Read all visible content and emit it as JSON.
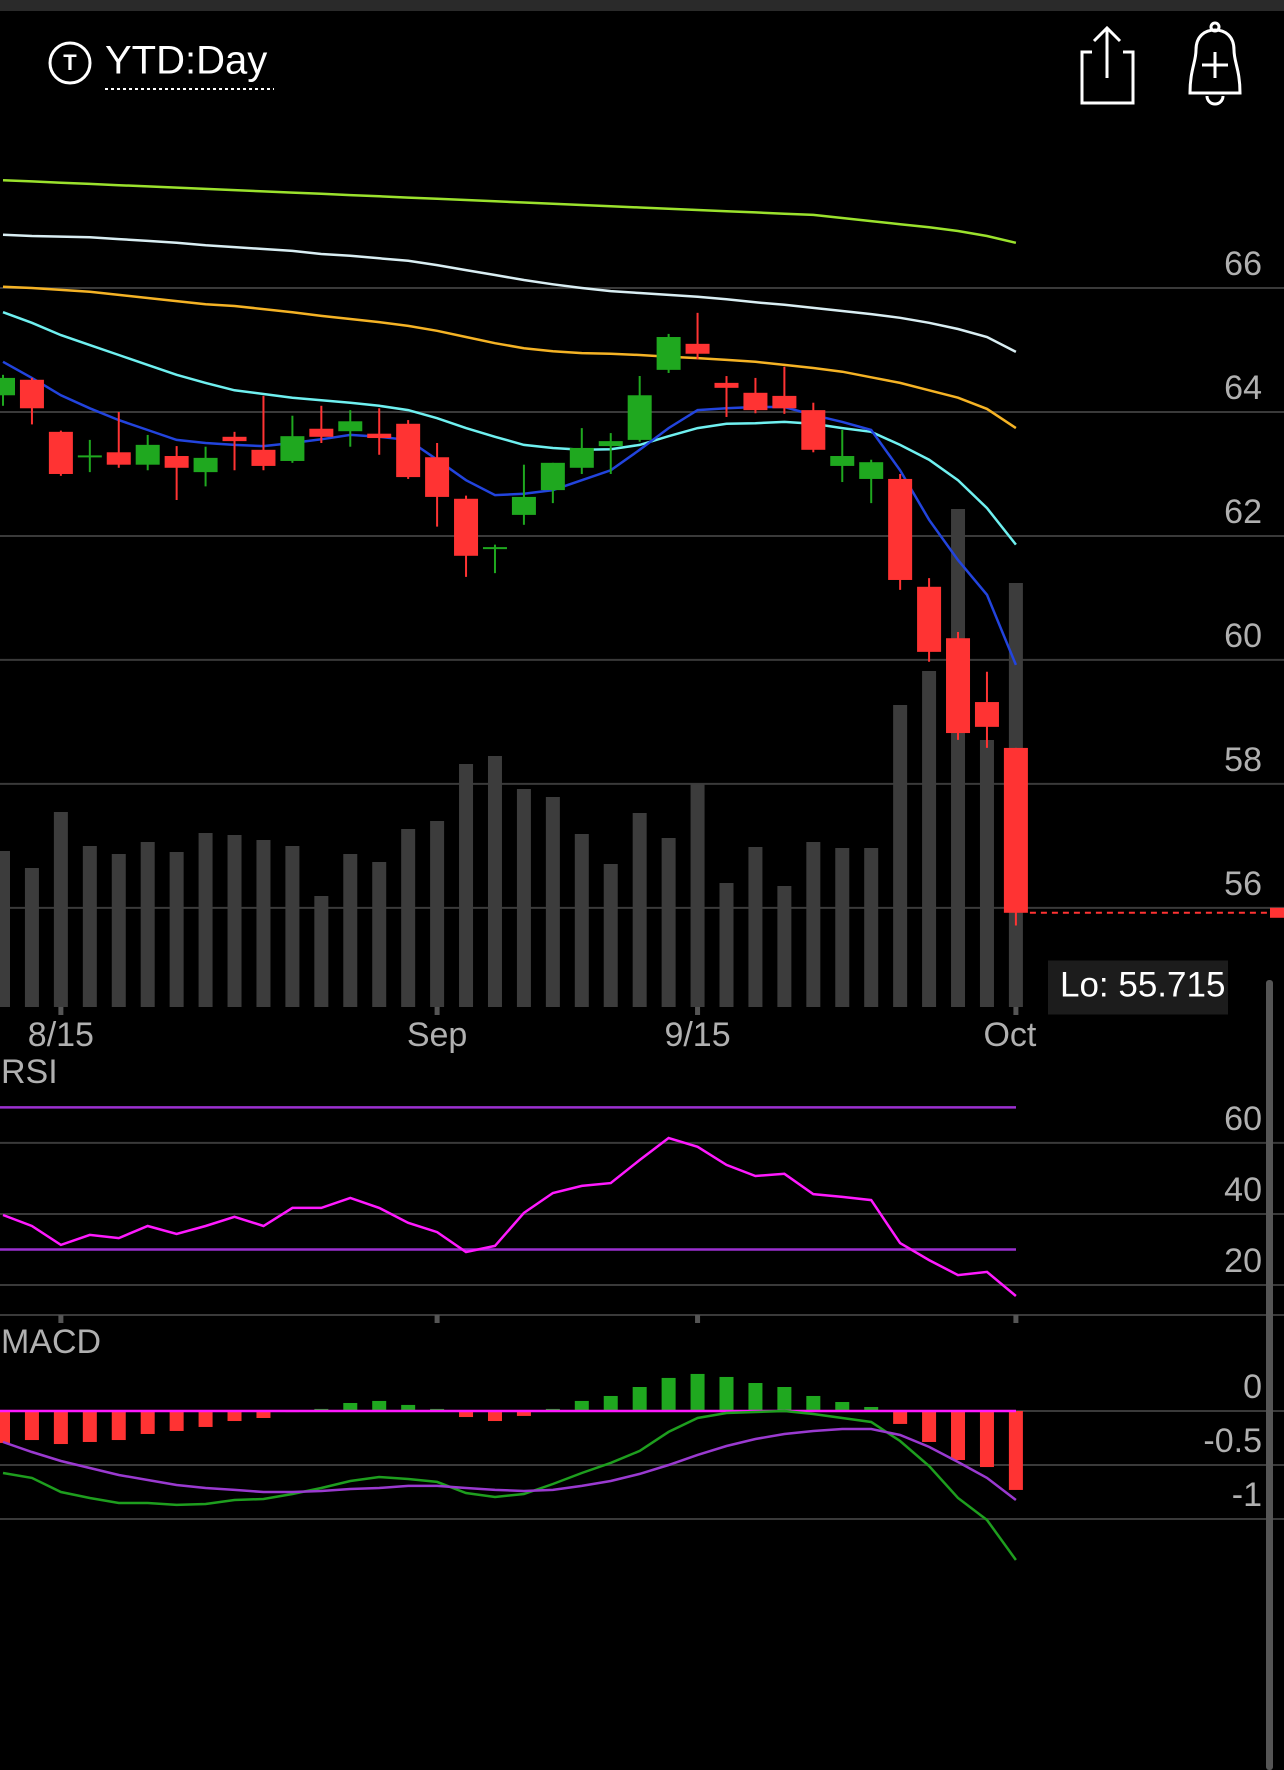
{
  "header": {
    "title": "YTD:Day"
  },
  "chart_data": [
    {
      "type": "candlestick",
      "categories": [
        null,
        null,
        "8/15",
        null,
        null,
        null,
        null,
        null,
        null,
        null,
        null,
        null,
        null,
        null,
        null,
        "Sep",
        null,
        null,
        null,
        null,
        null,
        null,
        null,
        null,
        "9/15",
        null,
        null,
        null,
        null,
        null,
        null,
        null,
        null,
        null,
        null,
        "Oct"
      ],
      "open": [
        64.27,
        64.52,
        63.68,
        63.27,
        63.35,
        63.15,
        63.29,
        63.03,
        63.6,
        63.39,
        63.21,
        63.73,
        63.69,
        63.65,
        63.81,
        63.27,
        62.6,
        61.8,
        62.34,
        62.74,
        63.1,
        63.45,
        63.55,
        64.68,
        65.1,
        64.47,
        64.31,
        64.26,
        64.03,
        63.13,
        62.92,
        62.92,
        61.18,
        60.35,
        59.32,
        58.58
      ],
      "high": [
        64.6,
        64.55,
        63.7,
        63.55,
        64.0,
        63.63,
        63.45,
        63.44,
        63.68,
        64.26,
        63.94,
        64.1,
        64.03,
        64.06,
        63.87,
        63.5,
        62.65,
        61.86,
        63.15,
        63.18,
        63.74,
        63.66,
        64.58,
        65.26,
        65.6,
        64.58,
        64.55,
        64.73,
        64.15,
        63.71,
        63.23,
        63.0,
        61.32,
        60.45,
        59.81,
        58.58
      ],
      "low": [
        64.1,
        63.8,
        62.97,
        63.03,
        63.1,
        63.06,
        62.58,
        62.8,
        63.06,
        63.06,
        63.18,
        63.5,
        63.44,
        63.31,
        62.92,
        62.15,
        61.34,
        61.4,
        62.18,
        62.53,
        63.0,
        63.0,
        63.52,
        64.63,
        64.85,
        63.92,
        63.98,
        63.97,
        63.35,
        62.87,
        62.53,
        61.13,
        59.97,
        58.71,
        58.58,
        55.715
      ],
      "close": [
        64.55,
        64.06,
        63.0,
        63.3,
        63.15,
        63.47,
        63.1,
        63.26,
        63.53,
        63.13,
        63.61,
        63.6,
        63.85,
        63.58,
        62.95,
        62.63,
        61.68,
        61.82,
        62.63,
        63.18,
        63.42,
        63.53,
        64.27,
        65.21,
        64.94,
        64.39,
        64.03,
        64.06,
        63.39,
        63.29,
        63.19,
        61.29,
        60.13,
        58.82,
        58.92,
        55.92
      ],
      "up_color": "#1fa81f",
      "down_color": "#ff3333",
      "volume": {
        "color": "#3c3c3c",
        "values": [
          156,
          139,
          195,
          161,
          153,
          165,
          155,
          174,
          172,
          167,
          161,
          111,
          153,
          145,
          178,
          186,
          243,
          251,
          218,
          210,
          173,
          143,
          194,
          169,
          223,
          124,
          160,
          121,
          165,
          159,
          159,
          302,
          336,
          498,
          267,
          424
        ]
      },
      "series": [
        {
          "color": "#9be22d",
          "values": [
            67.74,
            67.72,
            67.7,
            67.68,
            67.66,
            67.64,
            67.62,
            67.6,
            67.58,
            67.56,
            67.54,
            67.52,
            67.5,
            67.48,
            67.46,
            67.44,
            67.42,
            67.4,
            67.38,
            67.36,
            67.34,
            67.32,
            67.3,
            67.28,
            67.26,
            67.24,
            67.22,
            67.2,
            67.18,
            67.13,
            67.08,
            67.03,
            66.98,
            66.92,
            66.84,
            66.73
          ]
        },
        {
          "color": "#d9eef3",
          "values": [
            66.86,
            66.84,
            66.83,
            66.82,
            66.79,
            66.76,
            66.73,
            66.69,
            66.66,
            66.63,
            66.6,
            66.55,
            66.52,
            66.48,
            66.44,
            66.37,
            66.29,
            66.21,
            66.13,
            66.06,
            66.0,
            65.95,
            65.92,
            65.89,
            65.86,
            65.82,
            65.77,
            65.73,
            65.68,
            65.63,
            65.58,
            65.52,
            65.44,
            65.34,
            65.21,
            64.97
          ]
        },
        {
          "color": "#f5b325",
          "values": [
            66.02,
            66.0,
            65.97,
            65.94,
            65.89,
            65.84,
            65.79,
            65.74,
            65.71,
            65.66,
            65.61,
            65.55,
            65.5,
            65.45,
            65.39,
            65.31,
            65.21,
            65.11,
            65.03,
            64.98,
            64.95,
            64.94,
            64.92,
            64.89,
            64.87,
            64.84,
            64.81,
            64.76,
            64.71,
            64.65,
            64.56,
            64.47,
            64.35,
            64.23,
            64.05,
            63.74
          ]
        },
        {
          "color": "#6ff0f0",
          "values": [
            65.61,
            65.44,
            65.24,
            65.08,
            64.92,
            64.76,
            64.6,
            64.47,
            64.35,
            64.29,
            64.23,
            64.19,
            64.15,
            64.1,
            64.03,
            63.9,
            63.74,
            63.6,
            63.47,
            63.42,
            63.39,
            63.4,
            63.47,
            63.61,
            63.74,
            63.81,
            63.82,
            63.84,
            63.81,
            63.74,
            63.68,
            63.47,
            63.23,
            62.9,
            62.45,
            61.86
          ]
        },
        {
          "color": "#2244dd",
          "values": [
            64.81,
            64.55,
            64.27,
            64.06,
            63.87,
            63.71,
            63.55,
            63.5,
            63.47,
            63.45,
            63.5,
            63.56,
            63.63,
            63.6,
            63.55,
            63.23,
            62.9,
            62.66,
            62.68,
            62.74,
            62.9,
            63.06,
            63.39,
            63.74,
            64.03,
            64.06,
            64.08,
            64.08,
            63.95,
            63.84,
            63.71,
            63.06,
            62.26,
            61.61,
            61.05,
            59.92
          ]
        }
      ],
      "ylim": [
        54.4,
        68.55
      ],
      "yticks": [
        56,
        58,
        60,
        62,
        64,
        66
      ],
      "grid": true,
      "annotations": [
        {
          "text": "Lo: 55.715",
          "value": 55.715
        }
      ]
    },
    {
      "type": "line",
      "title": "RSI",
      "series": [
        {
          "color": "#ff1aff",
          "values": [
            39.7,
            36.6,
            31.3,
            34.1,
            33.2,
            36.6,
            34.4,
            36.6,
            39.2,
            36.6,
            41.7,
            41.7,
            44.5,
            41.7,
            37.5,
            34.9,
            29.3,
            31.0,
            40.3,
            45.9,
            47.9,
            48.7,
            55.2,
            61.4,
            58.9,
            53.8,
            50.7,
            51.3,
            45.6,
            44.8,
            43.9,
            31.8,
            27.0,
            22.8,
            23.7,
            16.9
          ]
        }
      ],
      "levels": [
        70,
        30
      ],
      "level_color": "#9b30d0",
      "ylim": [
        12.4,
        74.9
      ],
      "yticks": [
        60,
        40,
        20
      ],
      "grid": true
    },
    {
      "type": "macd",
      "title": "MACD",
      "histogram": {
        "values": [
          -0.296,
          -0.269,
          -0.306,
          -0.287,
          -0.269,
          -0.213,
          -0.185,
          -0.148,
          -0.093,
          -0.065,
          -0.01,
          0.019,
          0.074,
          0.093,
          0.056,
          0.019,
          -0.056,
          -0.093,
          -0.046,
          0.019,
          0.093,
          0.139,
          0.222,
          0.306,
          0.343,
          0.315,
          0.259,
          0.222,
          0.139,
          0.083,
          0.037,
          -0.12,
          -0.287,
          -0.454,
          -0.519,
          -0.731
        ]
      },
      "up_color": "#1fa81f",
      "down_color": "#ff3333",
      "zero_color": "#ff1aff",
      "series": [
        {
          "color": "#1e9e1e",
          "values": [
            -0.574,
            -0.62,
            -0.75,
            -0.806,
            -0.852,
            -0.852,
            -0.87,
            -0.861,
            -0.824,
            -0.815,
            -0.769,
            -0.713,
            -0.648,
            -0.611,
            -0.63,
            -0.657,
            -0.759,
            -0.796,
            -0.769,
            -0.676,
            -0.574,
            -0.481,
            -0.37,
            -0.194,
            -0.065,
            -0.019,
            -0.009,
            0,
            -0.028,
            -0.065,
            -0.102,
            -0.278,
            -0.509,
            -0.806,
            -1.009,
            -1.38
          ]
        },
        {
          "color": "#9a3ad0",
          "values": [
            -0.287,
            -0.38,
            -0.463,
            -0.528,
            -0.593,
            -0.639,
            -0.685,
            -0.713,
            -0.731,
            -0.75,
            -0.75,
            -0.741,
            -0.722,
            -0.713,
            -0.694,
            -0.694,
            -0.713,
            -0.731,
            -0.741,
            -0.731,
            -0.694,
            -0.648,
            -0.583,
            -0.5,
            -0.407,
            -0.324,
            -0.259,
            -0.213,
            -0.185,
            -0.167,
            -0.167,
            -0.222,
            -0.333,
            -0.472,
            -0.62,
            -0.824
          ]
        }
      ],
      "ylim": [
        -1.426,
        0.472
      ],
      "yticks": [
        0,
        -0.5,
        -1
      ],
      "grid": true
    }
  ]
}
